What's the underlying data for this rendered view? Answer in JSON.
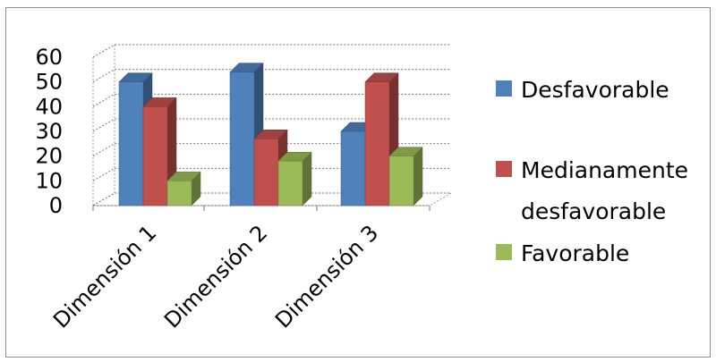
{
  "chart_data": {
    "type": "bar",
    "title": "",
    "xlabel": "",
    "ylabel": "",
    "categories": [
      "Dimensión 1",
      "Dimensión 2",
      "Dimensión 3"
    ],
    "series": [
      {
        "name": "Desfavorable",
        "color": "#4f81bd",
        "values": [
          50,
          54,
          30
        ]
      },
      {
        "name": "Medianamente desfavorable",
        "color": "#c0504d",
        "values": [
          40,
          27,
          50
        ]
      },
      {
        "name": "Favorable",
        "color": "#9bbb59",
        "values": [
          10,
          18,
          20
        ]
      }
    ],
    "ylim": [
      0,
      60
    ],
    "yticks": [
      0,
      10,
      20,
      30,
      40,
      50,
      60
    ],
    "grid": true,
    "style": "3d-clustered",
    "legend_position": "right"
  }
}
